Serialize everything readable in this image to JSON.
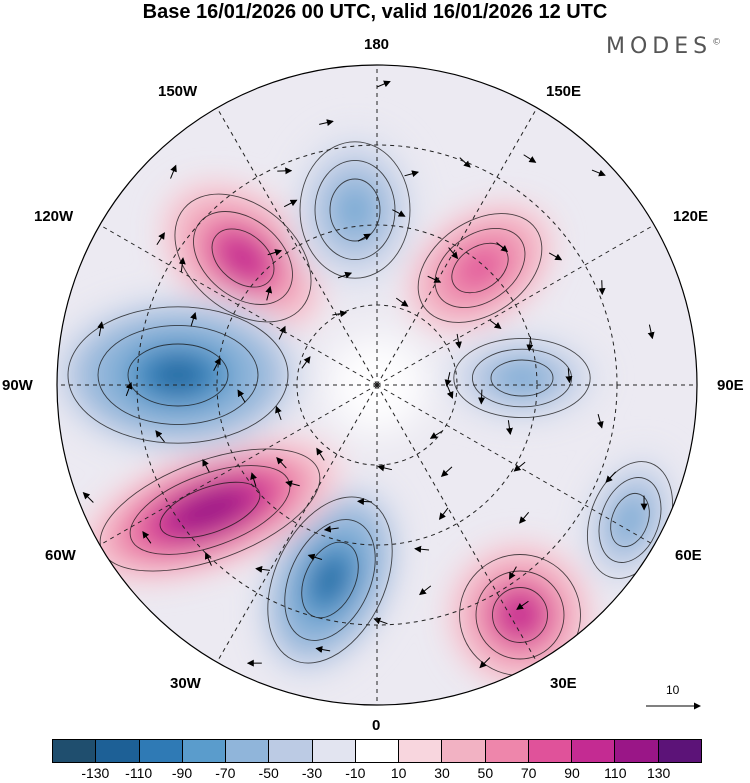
{
  "title": "Base 16/01/2026 00 UTC, valid 16/01/2026 12 UTC",
  "brand": {
    "name": "MODES",
    "mark": "©"
  },
  "longitude_labels": {
    "lon_180": "180",
    "lon_150e": "150E",
    "lon_120e": "120E",
    "lon_90e": "90E",
    "lon_60e": "60E",
    "lon_30e": "30E",
    "lon_0": "0",
    "lon_30w": "30W",
    "lon_60w": "60W",
    "lon_90w": "90W",
    "lon_120w": "120W",
    "lon_150w": "150W"
  },
  "vector_reference": {
    "value": "10"
  },
  "colorbar": {
    "colors": [
      "#1f4e6e",
      "#1d6096",
      "#2f7ab5",
      "#5a9ccc",
      "#90b5da",
      "#bccbe4",
      "#e2e4f0",
      "#ffffff",
      "#f8d6de",
      "#f2b2c3",
      "#ee86ab",
      "#e0529a",
      "#c42b92",
      "#9a1687",
      "#5c1378"
    ],
    "tick_labels": [
      "-130",
      "-110",
      "-90",
      "-70",
      "-50",
      "-30",
      "-10",
      "10",
      "30",
      "50",
      "70",
      "90",
      "110",
      "130"
    ]
  },
  "anomaly_centers": [
    {
      "name": "ridge-north-pacific",
      "sign": "positive",
      "peak_value": 110
    },
    {
      "name": "trough-north-pacific-east",
      "sign": "negative",
      "peak_value": -70
    },
    {
      "name": "ridge-east-asia",
      "sign": "positive",
      "peak_value": 90
    },
    {
      "name": "trough-siberia",
      "sign": "negative",
      "peak_value": -70
    },
    {
      "name": "trough-central-asia",
      "sign": "negative",
      "peak_value": -70
    },
    {
      "name": "ridge-europe",
      "sign": "positive",
      "peak_value": 110
    },
    {
      "name": "trough-north-atlantic",
      "sign": "negative",
      "peak_value": -110
    },
    {
      "name": "ridge-western-atlantic",
      "sign": "positive",
      "peak_value": 130
    },
    {
      "name": "trough-north-america",
      "sign": "negative",
      "peak_value": -110
    }
  ]
}
